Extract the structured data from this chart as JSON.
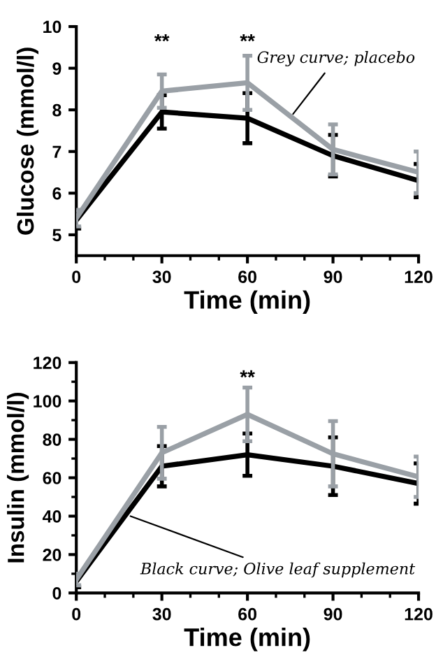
{
  "chart_data": [
    {
      "type": "line",
      "xlabel": "Time (min)",
      "ylabel": "Glucose (mmol/l)",
      "x": [
        0,
        30,
        60,
        90,
        120
      ],
      "xlim": [
        0,
        120
      ],
      "xticks": [
        0,
        30,
        60,
        90,
        120
      ],
      "ylim": [
        4.5,
        10
      ],
      "yticks": [
        5,
        6,
        7,
        8,
        9,
        10
      ],
      "grid": false,
      "legend": false,
      "marker": "none",
      "line_style": "solid",
      "series": [
        {
          "color": "#000000",
          "values": [
            5.35,
            7.95,
            7.8,
            6.9,
            6.3
          ],
          "errors": [
            0.2,
            0.4,
            0.6,
            0.5,
            0.4
          ]
        },
        {
          "color": "#9aa0a6",
          "values": [
            5.4,
            8.45,
            8.65,
            7.05,
            6.5
          ],
          "errors": [
            0.2,
            0.4,
            0.65,
            0.6,
            0.5
          ]
        }
      ],
      "annotations": [
        "**",
        "**",
        {
          "text": "Grey curve; placebo",
          "x": 76,
          "y": 7.9
        }
      ]
    },
    {
      "type": "line",
      "xlabel": "Time (min)",
      "ylabel": "Insulin (mmol/l)",
      "x": [
        0,
        30,
        60,
        90,
        120
      ],
      "xlim": [
        0,
        120
      ],
      "xticks": [
        0,
        30,
        60,
        90,
        120
      ],
      "ylim": [
        0,
        120
      ],
      "yticks": [
        0,
        20,
        40,
        60,
        80,
        100,
        120
      ],
      "grid": false,
      "legend": false,
      "marker": "none",
      "line_style": "solid",
      "series": [
        {
          "color": "#000000",
          "values": [
            6,
            66,
            72,
            66,
            57
          ],
          "errors": [
            3,
            10.5,
            11,
            15,
            10.5
          ]
        },
        {
          "color": "#9aa0a6",
          "values": [
            7,
            73,
            93,
            72.5,
            60.5
          ],
          "errors": [
            3,
            13.5,
            14,
            17,
            10.5
          ]
        }
      ],
      "annotations": [
        "**",
        {
          "text": "Black curve; Olive leaf supplement",
          "x": 19,
          "y": 40
        }
      ]
    }
  ]
}
